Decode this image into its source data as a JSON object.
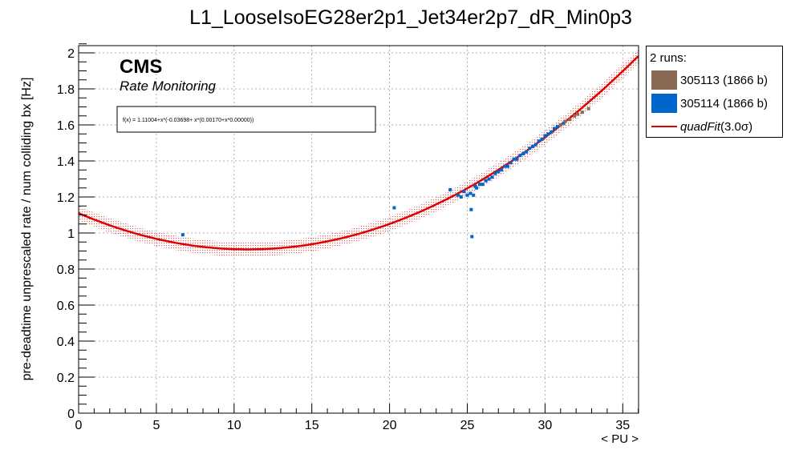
{
  "colors": {
    "run_305113": "#8b6a55",
    "run_305114": "#0066cc",
    "fit": "#e00000",
    "band": "#cc0000"
  },
  "brand": {
    "cms": "CMS",
    "sub": "Rate Monitoring"
  },
  "fit_box": {
    "formula": "f(x) = 1.11004+x*(-0.03698+ x*(0.00170+x*0.00000))"
  },
  "legend": {
    "header": "2 runs:",
    "entries": [
      {
        "label": "305113 (1866 b)",
        "kind": "box",
        "color": "#8b6a55"
      },
      {
        "label": "305114 (1866 b)",
        "kind": "box",
        "color": "#0066cc"
      },
      {
        "label_italic": "quadFit",
        "label_rest": "(3.0σ)",
        "kind": "line",
        "color": "#e00000"
      }
    ]
  },
  "chart_data": {
    "type": "scatter",
    "title": "L1_LooseIsoEG28er2p1_Jet34er2p7_dR_Min0p3",
    "xlabel": "< PU >",
    "ylabel": "pre-deadtime unprescaled rate / num colliding bx [Hz]",
    "xlim": [
      0,
      36
    ],
    "ylim": [
      0,
      2.05
    ],
    "x_ticks": [
      "0",
      "5",
      "10",
      "15",
      "20",
      "25",
      "30",
      "35"
    ],
    "y_ticks": [
      "0",
      "0.2",
      "0.4",
      "0.6",
      "0.8",
      "1",
      "1.2",
      "1.4",
      "1.6",
      "1.8",
      "2"
    ],
    "grid": true,
    "legend_position": "right",
    "fit": {
      "name": "quadFit(3.0σ)",
      "function": "quadratic",
      "coefficients": [
        1.11004,
        -0.03698,
        0.0017,
        0.0
      ],
      "x_range": [
        0,
        36
      ],
      "band_sigma": 3.0,
      "band_halfwidth": 0.04
    },
    "series": [
      {
        "name": "305113 (1866 b)",
        "points": [
          [
            31.0,
            1.6
          ],
          [
            31.3,
            1.62
          ],
          [
            31.6,
            1.63
          ],
          [
            31.9,
            1.65
          ],
          [
            32.1,
            1.66
          ],
          [
            32.4,
            1.67
          ],
          [
            32.8,
            1.69
          ]
        ]
      },
      {
        "name": "305114 (1866 b)",
        "points": [
          [
            6.7,
            0.99
          ],
          [
            20.3,
            1.14
          ],
          [
            23.9,
            1.24
          ],
          [
            24.4,
            1.21
          ],
          [
            24.6,
            1.2
          ],
          [
            24.8,
            1.23
          ],
          [
            25.0,
            1.21
          ],
          [
            25.2,
            1.22
          ],
          [
            25.3,
            0.98
          ],
          [
            25.25,
            1.13
          ],
          [
            25.4,
            1.21
          ],
          [
            25.5,
            1.26
          ],
          [
            25.6,
            1.25
          ],
          [
            25.8,
            1.27
          ],
          [
            26.0,
            1.27
          ],
          [
            26.2,
            1.29
          ],
          [
            26.4,
            1.3
          ],
          [
            26.6,
            1.31
          ],
          [
            26.8,
            1.33
          ],
          [
            27.0,
            1.34
          ],
          [
            27.2,
            1.35
          ],
          [
            27.4,
            1.37
          ],
          [
            27.6,
            1.37
          ],
          [
            27.8,
            1.39
          ],
          [
            28.0,
            1.41
          ],
          [
            28.2,
            1.41
          ],
          [
            28.4,
            1.43
          ],
          [
            28.6,
            1.44
          ],
          [
            28.8,
            1.45
          ],
          [
            29.0,
            1.47
          ],
          [
            29.2,
            1.48
          ],
          [
            29.4,
            1.49
          ],
          [
            29.6,
            1.51
          ],
          [
            29.8,
            1.52
          ],
          [
            30.0,
            1.54
          ],
          [
            30.2,
            1.55
          ],
          [
            30.4,
            1.56
          ],
          [
            30.6,
            1.58
          ],
          [
            30.8,
            1.59
          ],
          [
            31.0,
            1.6
          ],
          [
            31.2,
            1.61
          ]
        ]
      }
    ]
  }
}
